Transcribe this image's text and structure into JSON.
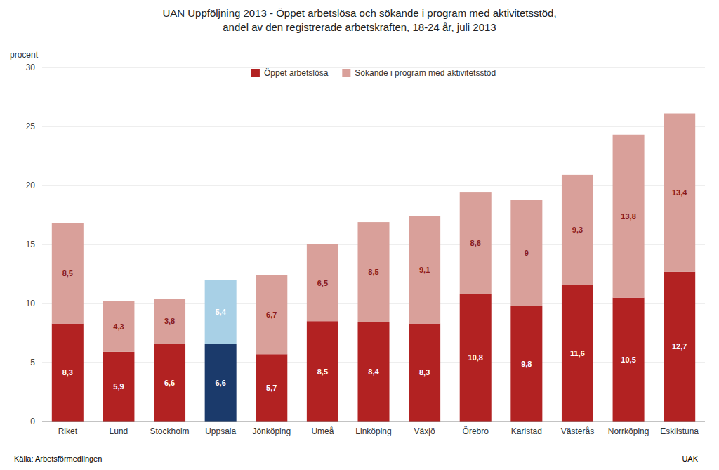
{
  "chart_data": {
    "type": "bar",
    "stacked": true,
    "data_labels": true,
    "grid": true,
    "legend": "top",
    "title": "UAN Uppföljning 2013 - Öppet arbetslösa och sökande i program med aktivitetsstöd,",
    "subtitle": "andel av den registrerade arbetskraften, 18-24 år, juli 2013",
    "ylabel": "procent",
    "annotations": [
      "Källa: Arbetsförmedlingen",
      "UAK"
    ],
    "categories": [
      "Riket",
      "Lund",
      "Stockholm",
      "Uppsala",
      "Jönköping",
      "Umeå",
      "Linköping",
      "Växjö",
      "Örebro",
      "Karlstad",
      "Västerås",
      "Norrköping",
      "Eskilstuna"
    ],
    "series": [
      {
        "name": "Öppet arbetslösa",
        "color": "#B22222",
        "colors": [
          "#B22222",
          "#B22222",
          "#B22222",
          "#1B3A6B",
          "#B22222",
          "#B22222",
          "#B22222",
          "#B22222",
          "#B22222",
          "#B22222",
          "#B22222",
          "#B22222",
          "#B22222"
        ],
        "values": [
          8.3,
          5.9,
          6.6,
          6.6,
          5.7,
          8.5,
          8.4,
          8.3,
          10.8,
          9.8,
          11.6,
          10.5,
          12.7
        ],
        "value_labels": [
          "8,3",
          "5,9",
          "6,6",
          "6,6",
          "5,7",
          "8,5",
          "8,4",
          "8,3",
          "10,8",
          "9,8",
          "11,6",
          "10,5",
          "12,7"
        ]
      },
      {
        "name": "Sökande i program med aktivitetsstöd",
        "color": "#D9A09A",
        "colors": [
          "#D9A09A",
          "#D9A09A",
          "#D9A09A",
          "#A8D0E6",
          "#D9A09A",
          "#D9A09A",
          "#D9A09A",
          "#D9A09A",
          "#D9A09A",
          "#D9A09A",
          "#D9A09A",
          "#D9A09A",
          "#D9A09A"
        ],
        "values": [
          8.5,
          4.3,
          3.8,
          5.4,
          6.7,
          6.5,
          8.5,
          9.1,
          8.6,
          9.0,
          9.3,
          13.8,
          13.4
        ],
        "value_labels": [
          "8,5",
          "4,3",
          "3,8",
          "5,4",
          "6,7",
          "6,5",
          "8,5",
          "9,1",
          "8,6",
          "9",
          "9,3",
          "13,8",
          "13,4"
        ]
      }
    ],
    "ylim": [
      0,
      30
    ],
    "yticks": [
      0,
      5,
      10,
      15,
      20,
      25,
      30
    ]
  }
}
